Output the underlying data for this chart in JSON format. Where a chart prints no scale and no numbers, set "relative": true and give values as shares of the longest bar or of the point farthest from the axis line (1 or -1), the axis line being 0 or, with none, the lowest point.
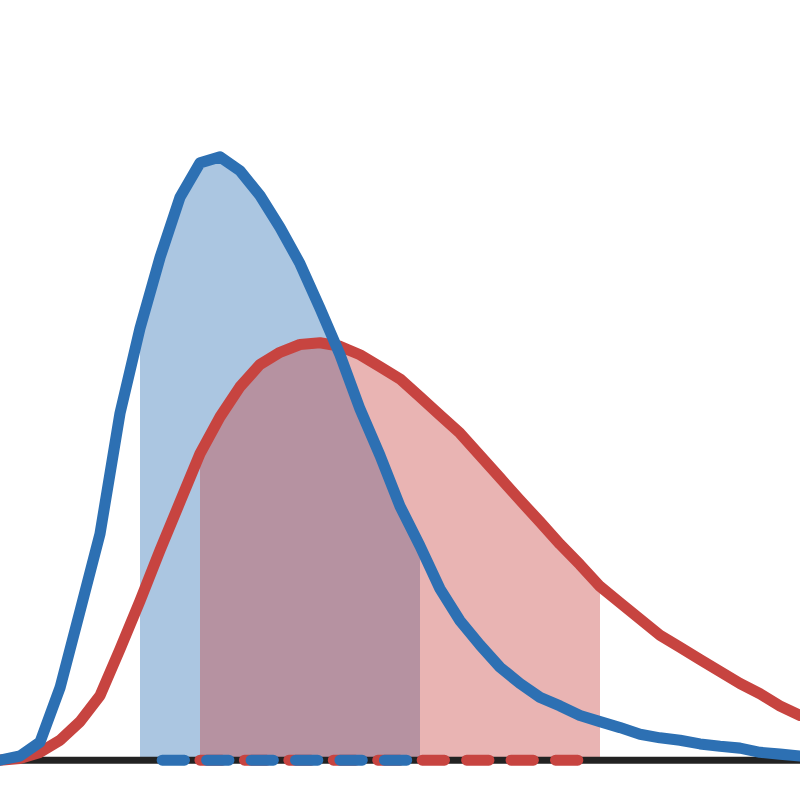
{
  "chart_data": {
    "type": "line",
    "relative": true,
    "categories": [
      null,
      null,
      null,
      null,
      null,
      null,
      null,
      null,
      null,
      null,
      null,
      null,
      null,
      null,
      null,
      null,
      null,
      null,
      null,
      null,
      null,
      null,
      null,
      null,
      null,
      null,
      null,
      null,
      null,
      null,
      null,
      null,
      null,
      null,
      null,
      null,
      null,
      null,
      null,
      null,
      null
    ],
    "series": [
      {
        "type": "area",
        "color": "#2d70b3",
        "values": [
          null,
          null,
          null,
          null,
          null,
          null,
          null,
          0.716,
          0.833,
          0.933,
          0.99,
          1.0,
          0.977,
          0.936,
          0.883,
          0.823,
          0.749,
          0.672,
          0.582,
          0.505,
          0.421,
          0.355,
          null,
          null,
          null,
          null,
          null,
          null,
          null,
          null,
          null,
          null,
          null,
          null,
          null,
          null,
          null,
          null,
          null,
          null,
          null
        ]
      },
      {
        "type": "area",
        "color": "#c74440",
        "values": [
          null,
          null,
          null,
          null,
          null,
          null,
          null,
          null,
          null,
          null,
          0.508,
          0.569,
          0.619,
          0.656,
          0.676,
          0.689,
          0.692,
          0.686,
          0.672,
          0.652,
          0.632,
          0.602,
          0.572,
          0.542,
          0.505,
          0.468,
          0.431,
          0.395,
          0.358,
          0.324,
          0.288,
          null,
          null,
          null,
          null,
          null,
          null,
          null,
          null,
          null,
          null
        ]
      },
      {
        "color": "#c74440",
        "values": [
          0,
          0.003,
          0.013,
          0.033,
          0.064,
          0.107,
          0.184,
          0.264,
          0.348,
          0.428,
          0.508,
          0.569,
          0.619,
          0.656,
          0.676,
          0.689,
          0.692,
          0.686,
          0.672,
          0.652,
          0.632,
          0.602,
          0.572,
          0.542,
          0.505,
          0.468,
          0.431,
          0.395,
          0.358,
          0.324,
          0.288,
          0.261,
          0.234,
          0.207,
          0.187,
          0.167,
          0.147,
          0.127,
          0.11,
          0.09,
          0.074
        ]
      },
      {
        "color": "#2d70b3",
        "values": [
          0,
          0.007,
          0.03,
          0.12,
          0.247,
          0.375,
          0.575,
          0.716,
          0.833,
          0.933,
          0.99,
          1.0,
          0.977,
          0.936,
          0.883,
          0.823,
          0.749,
          0.672,
          0.582,
          0.505,
          0.421,
          0.355,
          0.284,
          0.231,
          0.191,
          0.154,
          0.127,
          0.104,
          0.09,
          0.074,
          0.064,
          0.054,
          0.043,
          0.037,
          0.033,
          0.027,
          0.023,
          0.02,
          0.013,
          0.01,
          0.007
        ]
      },
      {
        "line_style": "dashed",
        "color": "#c74440",
        "values": [
          null,
          null,
          null,
          null,
          null,
          null,
          null,
          null,
          null,
          null,
          0,
          0,
          0,
          0,
          0,
          0,
          0,
          0,
          0,
          0,
          0,
          0,
          0,
          0,
          0,
          0,
          0,
          0,
          0,
          0,
          0,
          null,
          null,
          null,
          null,
          null,
          null,
          null,
          null,
          null,
          null
        ]
      },
      {
        "line_style": "dashed",
        "color": "#2d70b3",
        "values": [
          null,
          null,
          null,
          null,
          null,
          null,
          null,
          0,
          0,
          0,
          0,
          0,
          0,
          0,
          0,
          0,
          0,
          0,
          0,
          0,
          0,
          0,
          null,
          null,
          null,
          null,
          null,
          null,
          null,
          null,
          null,
          null,
          null,
          null,
          null,
          null,
          null,
          null,
          null,
          null,
          null
        ]
      }
    ]
  }
}
